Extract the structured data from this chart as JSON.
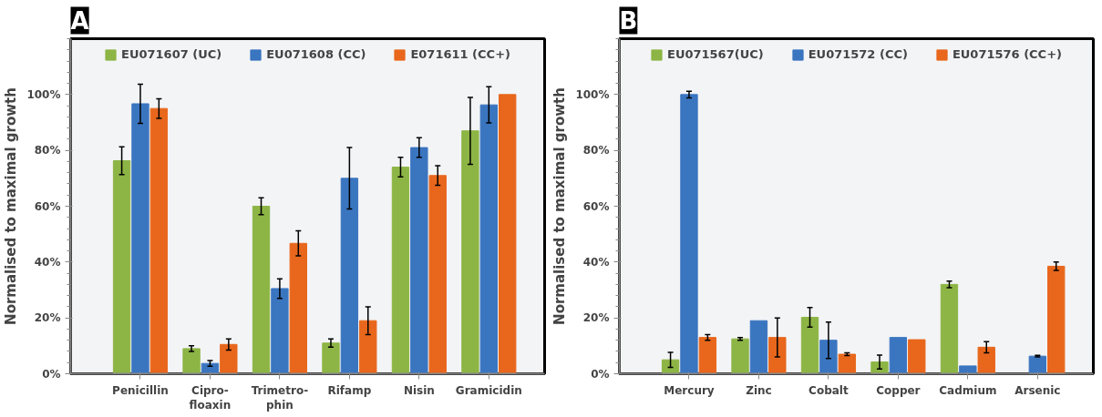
{
  "chart_data": [
    {
      "type": "bar",
      "title": "A",
      "ylabel": "Normalised to maximal growth",
      "categories": [
        "Penicillin",
        "Cipro-\nfloaxin",
        "Trimetro-\nphin",
        "Rifamp",
        "Nisin",
        "Gramicidin"
      ],
      "ylim": [
        0,
        120
      ],
      "yticks": [
        {
          "value": 0,
          "label": "0%"
        },
        {
          "value": 20,
          "label": "20%"
        },
        {
          "value": 40,
          "label": "40%"
        },
        {
          "value": 60,
          "label": "60%"
        },
        {
          "value": 80,
          "label": "80%"
        },
        {
          "value": 100,
          "label": "100%"
        }
      ],
      "grid": false,
      "legend": "top",
      "series": [
        {
          "name": "EU071607 (UC)",
          "color": "#8db545",
          "values": [
            76.3,
            9,
            60,
            11,
            74,
            87
          ],
          "errors": [
            5,
            1,
            3,
            1.5,
            3.5,
            12
          ]
        },
        {
          "name": "EU071608 (CC)",
          "color": "#3a75c0",
          "values": [
            96.7,
            3.7,
            30.5,
            70,
            81,
            96.3
          ],
          "errors": [
            7,
            1,
            3.5,
            11,
            3.5,
            6.5
          ]
        },
        {
          "name": "E071611 (CC+)",
          "color": "#e8671c",
          "values": [
            95,
            10.5,
            46.7,
            19,
            71,
            100
          ],
          "errors": [
            3.5,
            2,
            4.5,
            5,
            3.5,
            null
          ]
        }
      ]
    },
    {
      "type": "bar",
      "title": "B",
      "ylabel": "Normalised to maximal growth",
      "categories": [
        "Mercury",
        "Zinc",
        "Cobalt",
        "Copper",
        "Cadmium",
        "Arsenic"
      ],
      "ylim": [
        0,
        120
      ],
      "yticks": [
        {
          "value": 0,
          "label": "0%"
        },
        {
          "value": 20,
          "label": "20%"
        },
        {
          "value": 40,
          "label": "40%"
        },
        {
          "value": 60,
          "label": "60%"
        },
        {
          "value": 80,
          "label": "80%"
        },
        {
          "value": 100,
          "label": "100%"
        }
      ],
      "grid": false,
      "legend": "top",
      "series": [
        {
          "name": "EU071567(UC)",
          "color": "#8db545",
          "values": [
            5,
            12.5,
            20.2,
            4.2,
            32,
            null
          ],
          "errors": [
            2.7,
            0.5,
            3.5,
            2.5,
            1.2,
            null
          ]
        },
        {
          "name": "EU071572 (CC)",
          "color": "#3a75c0",
          "values": [
            100,
            19,
            12,
            13,
            2.8,
            6.3
          ],
          "errors": [
            1.2,
            null,
            6.5,
            null,
            null,
            0.3
          ]
        },
        {
          "name": "EU071576 (CC+)",
          "color": "#e8671c",
          "values": [
            13,
            13,
            7,
            12.2,
            9.5,
            38.5
          ],
          "errors": [
            1,
            7,
            0.5,
            null,
            2,
            1.5
          ]
        }
      ]
    }
  ]
}
